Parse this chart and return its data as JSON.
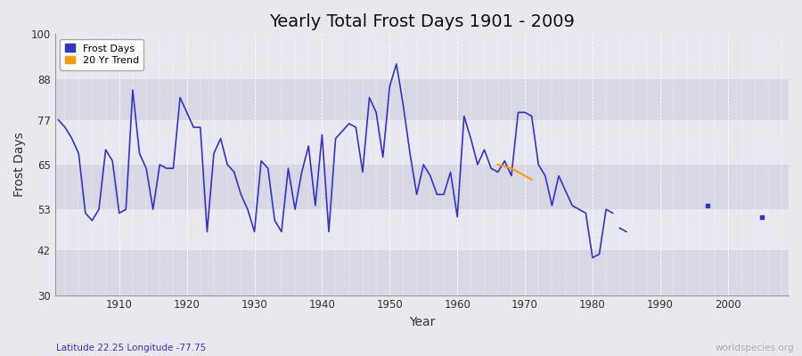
{
  "title": "Yearly Total Frost Days 1901 - 2009",
  "xlabel": "Year",
  "ylabel": "Frost Days",
  "xlim": [
    1900.5,
    2009
  ],
  "ylim": [
    30,
    100
  ],
  "yticks": [
    30,
    42,
    53,
    65,
    77,
    88,
    100
  ],
  "xticks": [
    1910,
    1920,
    1930,
    1940,
    1950,
    1960,
    1970,
    1980,
    1990,
    2000
  ],
  "background_color": "#e8e8ee",
  "plot_bg_color": "#e0e0ea",
  "grid_color": "#ffffff",
  "line_color": "#3333cc",
  "trend_color": "#ff9900",
  "title_fontsize": 14,
  "axis_label_fontsize": 10,
  "subtitle": "Latitude 22.25 Longitude -77.75",
  "watermark": "worldspecies.org",
  "segments": [
    {
      "years": [
        1901,
        1902,
        1903,
        1904,
        1905,
        1906,
        1907,
        1908,
        1909,
        1910,
        1911,
        1912,
        1913,
        1914,
        1915,
        1916,
        1917,
        1918,
        1919,
        1920,
        1921,
        1922,
        1923,
        1924,
        1925,
        1926,
        1927,
        1928,
        1929,
        1930,
        1931,
        1932,
        1933,
        1934,
        1935,
        1936,
        1937,
        1938,
        1939,
        1940,
        1941,
        1942,
        1943,
        1944,
        1945,
        1946,
        1947,
        1948,
        1949,
        1950,
        1951,
        1952,
        1953,
        1954,
        1955,
        1956,
        1957,
        1958,
        1959,
        1960,
        1961,
        1962,
        1963,
        1964,
        1965,
        1966,
        1967,
        1968,
        1969,
        1970,
        1971,
        1972,
        1973,
        1974,
        1975,
        1976,
        1977,
        1978,
        1979,
        1980,
        1981,
        1982,
        1983
      ],
      "values": [
        77,
        75,
        72,
        68,
        52,
        50,
        53,
        69,
        66,
        52,
        53,
        85,
        68,
        64,
        53,
        65,
        64,
        64,
        83,
        79,
        75,
        75,
        47,
        68,
        72,
        65,
        63,
        57,
        53,
        47,
        66,
        64,
        50,
        47,
        64,
        53,
        63,
        70,
        54,
        73,
        47,
        72,
        74,
        76,
        75,
        63,
        83,
        79,
        67,
        86,
        92,
        81,
        68,
        57,
        65,
        62,
        57,
        57,
        63,
        51,
        78,
        72,
        65,
        69,
        64,
        63,
        66,
        62,
        79,
        79,
        78,
        65,
        62,
        54,
        62,
        58,
        54,
        53,
        52,
        40,
        41,
        53,
        52
      ]
    },
    {
      "years": [
        1984,
        1985
      ],
      "values": [
        48,
        47
      ]
    },
    {
      "years": [
        1997
      ],
      "values": [
        54
      ]
    },
    {
      "years": [
        2005
      ],
      "values": [
        51
      ]
    }
  ],
  "trend_years": [
    1966,
    1967,
    1968,
    1969,
    1970,
    1971
  ],
  "trend_values": [
    65,
    64.5,
    64,
    63,
    62,
    61
  ]
}
